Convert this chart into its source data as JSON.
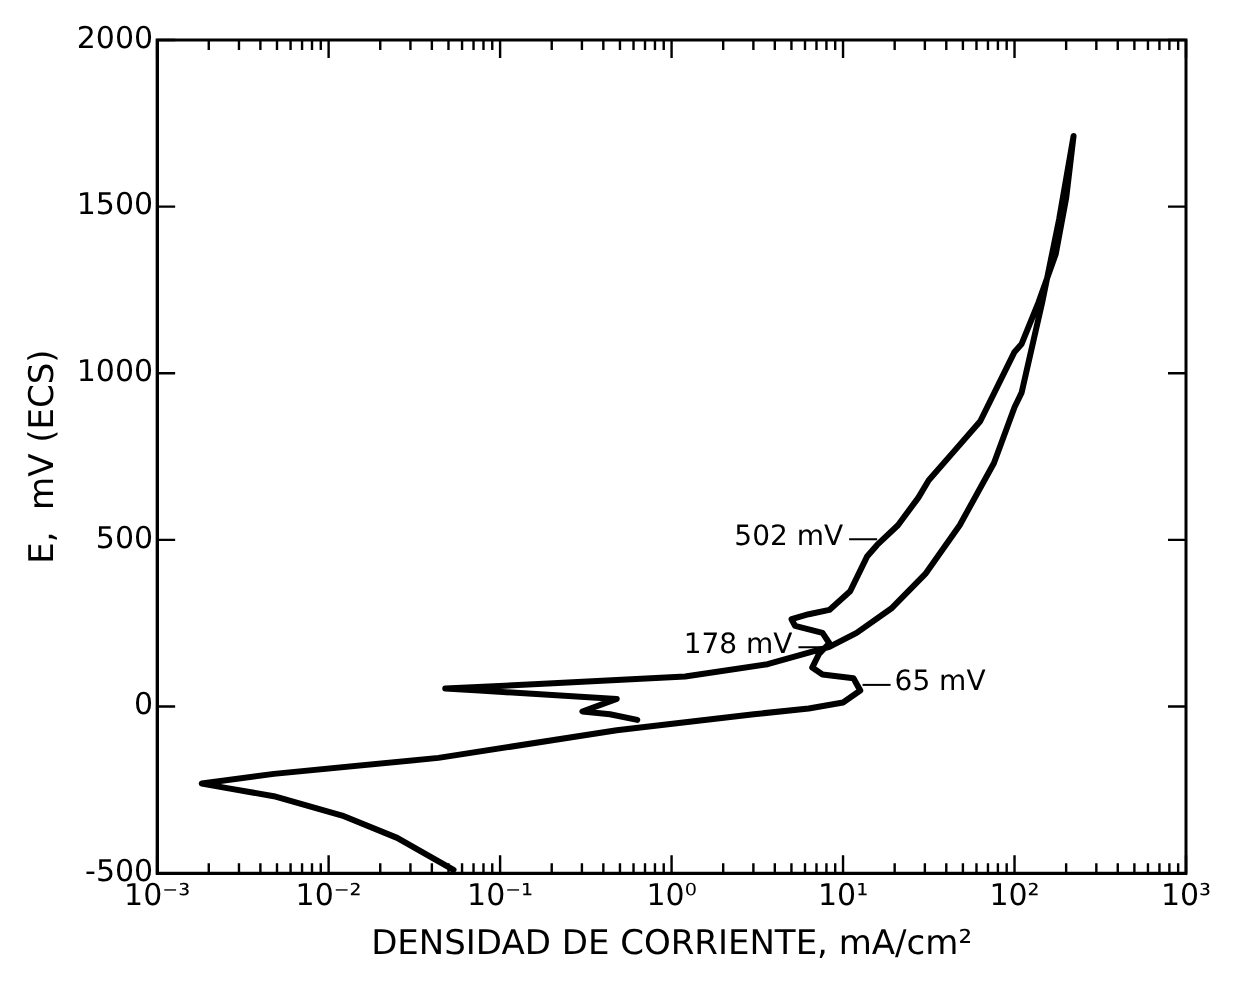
{
  "chart_data": {
    "type": "line",
    "xlabel": "DENSIDAD DE CORRIENTE, mA/cm²",
    "ylabel": "E,  mV (ECS)",
    "log": "x",
    "grid": false,
    "legend": false,
    "marker": "none",
    "line_style": "solid",
    "xlim": [
      0.001,
      1000
    ],
    "ylim": [
      -500,
      2000
    ],
    "xticks": [
      {
        "value": 0.001,
        "label": "10⁻³"
      },
      {
        "value": 0.002,
        "label": null
      },
      {
        "value": 0.003,
        "label": null
      },
      {
        "value": 0.004,
        "label": null
      },
      {
        "value": 0.005,
        "label": null
      },
      {
        "value": 0.006,
        "label": null
      },
      {
        "value": 0.007,
        "label": null
      },
      {
        "value": 0.008,
        "label": null
      },
      {
        "value": 0.009,
        "label": null
      },
      {
        "value": 0.01,
        "label": "10⁻²"
      },
      {
        "value": 0.02,
        "label": null
      },
      {
        "value": 0.03,
        "label": null
      },
      {
        "value": 0.04,
        "label": null
      },
      {
        "value": 0.05,
        "label": null
      },
      {
        "value": 0.06,
        "label": null
      },
      {
        "value": 0.07,
        "label": null
      },
      {
        "value": 0.08,
        "label": null
      },
      {
        "value": 0.09,
        "label": null
      },
      {
        "value": 0.1,
        "label": "10⁻¹"
      },
      {
        "value": 0.2,
        "label": null
      },
      {
        "value": 0.3,
        "label": null
      },
      {
        "value": 0.4,
        "label": null
      },
      {
        "value": 0.5,
        "label": null
      },
      {
        "value": 0.6,
        "label": null
      },
      {
        "value": 0.7,
        "label": null
      },
      {
        "value": 0.8,
        "label": null
      },
      {
        "value": 0.9,
        "label": null
      },
      {
        "value": 1,
        "label": "10⁰"
      },
      {
        "value": 2,
        "label": null
      },
      {
        "value": 3,
        "label": null
      },
      {
        "value": 4,
        "label": null
      },
      {
        "value": 5,
        "label": null
      },
      {
        "value": 6,
        "label": null
      },
      {
        "value": 7,
        "label": null
      },
      {
        "value": 8,
        "label": null
      },
      {
        "value": 9,
        "label": null
      },
      {
        "value": 10,
        "label": "10¹"
      },
      {
        "value": 20,
        "label": null
      },
      {
        "value": 30,
        "label": null
      },
      {
        "value": 40,
        "label": null
      },
      {
        "value": 50,
        "label": null
      },
      {
        "value": 60,
        "label": null
      },
      {
        "value": 70,
        "label": null
      },
      {
        "value": 80,
        "label": null
      },
      {
        "value": 90,
        "label": null
      },
      {
        "value": 100,
        "label": "10²"
      },
      {
        "value": 200,
        "label": null
      },
      {
        "value": 300,
        "label": null
      },
      {
        "value": 400,
        "label": null
      },
      {
        "value": 500,
        "label": null
      },
      {
        "value": 600,
        "label": null
      },
      {
        "value": 700,
        "label": null
      },
      {
        "value": 800,
        "label": null
      },
      {
        "value": 900,
        "label": null
      },
      {
        "value": 1000,
        "label": "10³"
      }
    ],
    "yticks": [
      -500,
      0,
      500,
      1000,
      1500,
      2000
    ],
    "annotations": [
      {
        "text": "502 mV",
        "x": 15.8,
        "y": 502
      },
      {
        "text": "178 mV",
        "x": 8,
        "y": 178
      },
      {
        "text": "65 mV",
        "x": 13,
        "y": 65
      }
    ],
    "series": [
      {
        "color": "#000000",
        "x": [
          0.0535,
          0.0251,
          0.012,
          0.00479,
          0.00251,
          0.00182,
          0.00479,
          0.0437,
          0.479,
          3.02,
          6.31,
          10,
          12.6,
          11.5,
          7.59,
          6.61,
          7.24,
          8.32,
          7.59,
          5.25,
          5.01,
          6.31,
          8.32,
          11,
          13.8,
          15.8,
          20.9,
          27.5,
          31.6,
          43.7,
          63.1,
          100,
          110,
          138,
          174,
          200,
          221,
          182,
          145,
          110,
          100,
          75.9,
          47.9,
          30.2,
          19.1,
          12,
          8.32,
          3.63,
          1.2,
          0.191,
          0.0479,
          0.0759,
          0.479,
          0.302,
          0.437,
          0.631
        ],
        "values": [
          -490,
          -394,
          -327,
          -269,
          -244,
          -231,
          -202,
          -154,
          -71,
          -23,
          -6,
          12,
          48,
          85,
          96,
          117,
          158,
          190,
          221,
          242,
          262,
          277,
          290,
          346,
          450,
          485,
          544,
          627,
          679,
          762,
          856,
          1064,
          1088,
          1213,
          1358,
          1525,
          1712,
          1462,
          1213,
          942,
          898,
          731,
          544,
          398,
          294,
          221,
          179,
          127,
          90,
          69,
          54,
          48,
          23,
          -15,
          -23,
          -40
        ]
      }
    ]
  }
}
